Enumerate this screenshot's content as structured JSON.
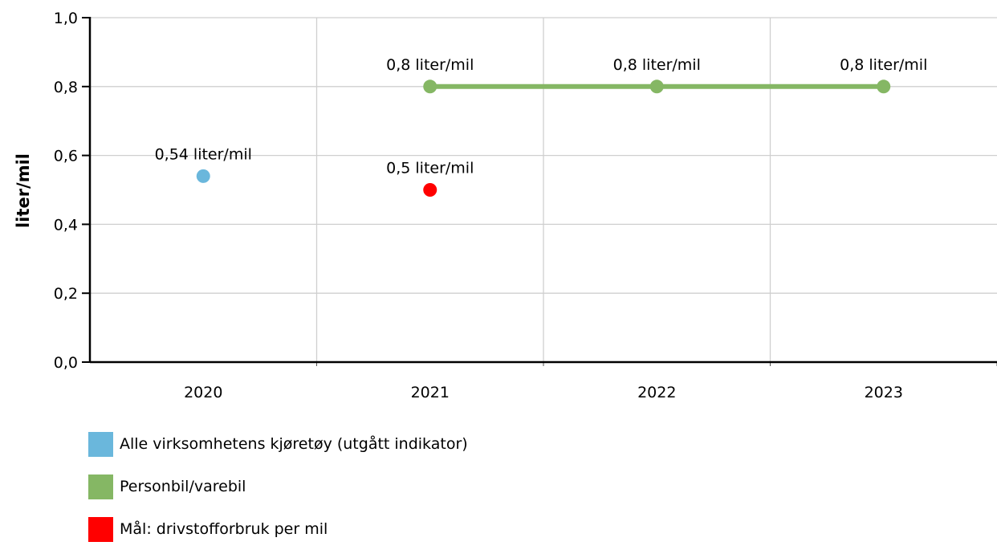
{
  "chart_data": {
    "type": "line",
    "title": "",
    "xlabel": "",
    "ylabel": "liter/mil",
    "categories": [
      "2020",
      "2021",
      "2022",
      "2023"
    ],
    "ylim": [
      0,
      1.0
    ],
    "yticks": [
      "0,0",
      "0,2",
      "0,4",
      "0,6",
      "0,8",
      "1,0"
    ],
    "grid": true,
    "legend_position": "bottom-left",
    "series": [
      {
        "name": "Alle virksomhetens kjøretøy (utgått indikator)",
        "color": "#6ab7dc",
        "values": [
          0.54,
          null,
          null,
          null
        ],
        "labels": [
          "0,54 liter/mil",
          null,
          null,
          null
        ],
        "line": false
      },
      {
        "name": "Personbil/varebil",
        "color": "#85b764",
        "values": [
          null,
          0.8,
          0.8,
          0.8
        ],
        "labels": [
          null,
          "0,8 liter/mil",
          "0,8 liter/mil",
          "0,8 liter/mil"
        ],
        "line": true
      },
      {
        "name": "Mål: drivstofforbruk per mil",
        "color": "#ff0000",
        "values": [
          null,
          0.5,
          null,
          null
        ],
        "labels": [
          null,
          "0,5 liter/mil",
          null,
          null
        ],
        "line": false
      }
    ]
  }
}
